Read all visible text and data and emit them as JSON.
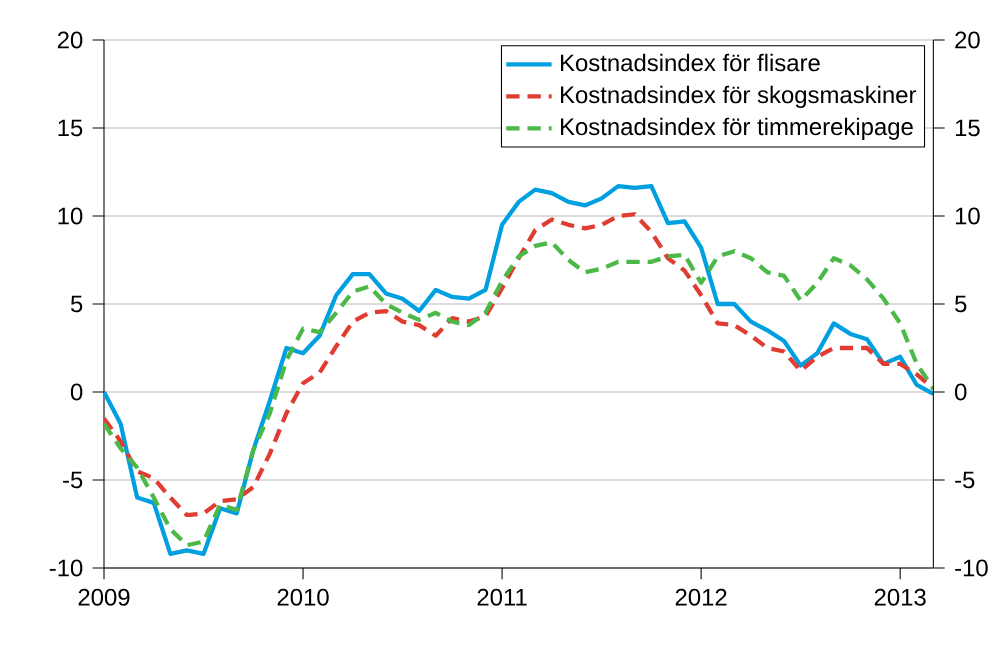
{
  "chart_data": {
    "type": "line",
    "x": [
      "2009-01",
      "2009-02",
      "2009-03",
      "2009-04",
      "2009-05",
      "2009-06",
      "2009-07",
      "2009-08",
      "2009-09",
      "2009-10",
      "2009-11",
      "2009-12",
      "2010-01",
      "2010-02",
      "2010-03",
      "2010-04",
      "2010-05",
      "2010-06",
      "2010-07",
      "2010-08",
      "2010-09",
      "2010-10",
      "2010-11",
      "2010-12",
      "2011-01",
      "2011-02",
      "2011-03",
      "2011-04",
      "2011-05",
      "2011-06",
      "2011-07",
      "2011-08",
      "2011-09",
      "2011-10",
      "2011-11",
      "2011-12",
      "2012-01",
      "2012-02",
      "2012-03",
      "2012-04",
      "2012-05",
      "2012-06",
      "2012-07",
      "2012-08",
      "2012-09",
      "2012-10",
      "2012-11",
      "2012-12",
      "2013-01",
      "2013-02",
      "2013-03"
    ],
    "series": [
      {
        "name": "Kostnadsindex för flisare",
        "color": "#00a0e0",
        "line_style": "solid",
        "values": [
          0,
          -1.8,
          -6.0,
          -6.3,
          -9.2,
          -9.0,
          -9.2,
          -6.6,
          -6.9,
          -3.3,
          -0.5,
          2.5,
          2.2,
          3.2,
          5.5,
          6.7,
          6.7,
          5.6,
          5.3,
          4.6,
          5.8,
          5.4,
          5.3,
          5.8,
          9.5,
          10.8,
          11.5,
          11.3,
          10.8,
          10.6,
          11.0,
          11.7,
          11.6,
          11.7,
          9.6,
          9.7,
          8.2,
          5.0,
          5.0,
          4.0,
          3.5,
          2.9,
          1.5,
          2.2,
          3.9,
          3.3,
          3.0,
          1.6,
          2.0,
          0.4,
          -0.1
        ]
      },
      {
        "name": "Kostnadsindex för skogsmaskiner",
        "color": "#e03c31",
        "line_style": "dashed",
        "values": [
          -1.5,
          -2.8,
          -4.5,
          -4.9,
          -6.0,
          -7.0,
          -6.9,
          -6.2,
          -6.1,
          -5.4,
          -3.5,
          -1.2,
          0.5,
          1.1,
          2.6,
          4.0,
          4.5,
          4.6,
          4.0,
          3.8,
          3.2,
          4.2,
          4.0,
          4.3,
          5.9,
          7.6,
          9.2,
          9.8,
          9.5,
          9.3,
          9.5,
          10.0,
          10.1,
          9.1,
          7.6,
          6.9,
          5.5,
          3.9,
          3.8,
          3.2,
          2.5,
          2.3,
          1.2,
          2.0,
          2.5,
          2.5,
          2.5,
          1.6,
          1.6,
          1.0,
          0.2
        ]
      },
      {
        "name": "Kostnadsindex för timmerekipage",
        "color": "#4cb848",
        "line_style": "dashed",
        "values": [
          -1.8,
          -3.2,
          -4.3,
          -6.0,
          -7.8,
          -8.7,
          -8.5,
          -6.4,
          -6.7,
          -3.3,
          -1.2,
          1.8,
          3.6,
          3.4,
          4.5,
          5.7,
          6.0,
          5.0,
          4.5,
          4.1,
          4.5,
          4.0,
          3.8,
          4.5,
          6.3,
          7.7,
          8.3,
          8.5,
          7.5,
          6.8,
          7.0,
          7.4,
          7.4,
          7.4,
          7.7,
          7.8,
          6.2,
          7.7,
          8.0,
          7.6,
          6.8,
          6.6,
          5.2,
          6.2,
          7.6,
          7.2,
          6.4,
          5.3,
          3.9,
          1.6,
          0.2
        ]
      }
    ],
    "xlim": [
      "2009-01",
      "2013-03"
    ],
    "xticks": [
      {
        "value": "2009-01",
        "label": "2009"
      },
      {
        "value": "2010-01",
        "label": "2010"
      },
      {
        "value": "2011-01",
        "label": "2011"
      },
      {
        "value": "2012-01",
        "label": "2012"
      },
      {
        "value": "2013-01",
        "label": "2013"
      }
    ],
    "ylim": [
      -10,
      20
    ],
    "yticks": [
      -10,
      -5,
      0,
      5,
      10,
      15,
      20
    ],
    "y2lim": [
      -10,
      20
    ],
    "y2ticks": [
      -10,
      -5,
      0,
      5,
      10,
      15,
      20
    ],
    "grid": "y",
    "legend": "top right",
    "marker": "none"
  }
}
